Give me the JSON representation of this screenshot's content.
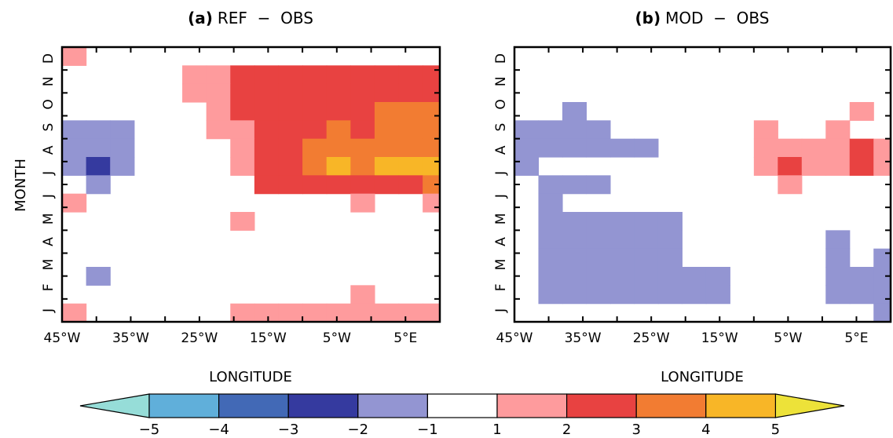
{
  "figure": {
    "colorbar": {
      "labels": [
        "−5",
        "−4",
        "−3",
        "−2",
        "−1",
        "1",
        "2",
        "3",
        "4",
        "5"
      ],
      "colors": {
        "low_extend": "#96ddd8",
        "bins": [
          "#60afda",
          "#4269b6",
          "#353a9f",
          "#9395d2",
          "#ffffff",
          "#fe9b9d",
          "#e84241",
          "#f27c32",
          "#f8b627"
        ],
        "high_extend": "#ede239"
      }
    }
  },
  "chart_data": [
    {
      "type": "heatmap",
      "panel": "a",
      "title_bold": "(a)",
      "title": "REF  −  OBS",
      "xlabel": "LONGITUDE",
      "ylabel": "MONTH",
      "x_ticklabels": [
        "45°W",
        "35°W",
        "25°W",
        "15°W",
        "5°W",
        "5°E"
      ],
      "y_ticklabels": [
        "J",
        "F",
        "M",
        "A",
        "M",
        "J",
        "J",
        "A",
        "S",
        "O",
        "N",
        "D"
      ],
      "x_range_deg": [
        -45,
        10
      ],
      "cell_width_deg": 3.5,
      "scale_bins": [
        "<-5",
        "-5..-4",
        "-4..-3",
        "-3..-2",
        "-2..-1",
        "-1..1",
        "1..2",
        "2..3",
        "3..4",
        "4..5",
        ">5"
      ],
      "rows_top_to_bottom": [
        "6555555555555555",
        "5555566777777777",
        "5555566777777777",
        "5555556777777888",
        "4445556677787888",
        "4445555677888888",
        "4345555677898999",
        "5455555577777778",
        "6555555555556556",
        "5555555655555555",
        "5555555555555555",
        "5555555555555555",
        "5455555555555555",
        "5555555555556555",
        "6555555666666666"
      ]
    },
    {
      "type": "heatmap",
      "panel": "b",
      "title_bold": "(b)",
      "title": "MOD  −  OBS",
      "xlabel": "LONGITUDE",
      "ylabel": "",
      "x_ticklabels": [
        "45°W",
        "35°W",
        "25°W",
        "15°W",
        "5°W",
        "5°E"
      ],
      "y_ticklabels": [
        "J",
        "F",
        "M",
        "A",
        "M",
        "J",
        "J",
        "A",
        "S",
        "O",
        "N",
        "D"
      ],
      "x_range_deg": [
        -45,
        10
      ],
      "cell_width_deg": 3.5,
      "scale_bins": [
        "<-5",
        "-5..-4",
        "-4..-3",
        "-3..-2",
        "-2..-1",
        "-1..1",
        "1..2",
        "2..3",
        "3..4",
        "4..5",
        ">5"
      ],
      "rows_top_to_bottom": [
        "5555555555555555",
        "5555555555555555",
        "5555555555555555",
        "5545555555555565",
        "4444555555655655",
        "4444445555666676",
        "4555555555676676",
        "5444555555565555",
        "5455555555555555",
        "5444444555555555",
        "5444444555555455",
        "5444444555555454",
        "5444444445555444",
        "5444444445555444",
        "5555555555555554"
      ]
    }
  ]
}
